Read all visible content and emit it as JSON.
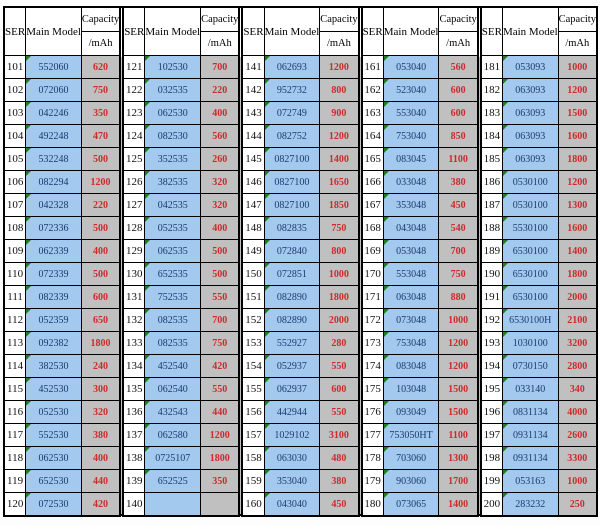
{
  "title": "battery model capacity list",
  "colors": {
    "cell_blue": "#a4c9ee",
    "cell_gray": "#c0c0c0",
    "value_red": "#cc2b2b",
    "model_text": "#1c3a6e",
    "flag_green": "#1e7d1e",
    "border_black": "#000000"
  },
  "header": {
    "ser": "SER",
    "model": "Main Model",
    "capacity_line1": "Capacity",
    "capacity_line2": "/mAh"
  },
  "groups": [
    {
      "rows": [
        [
          "101",
          "552060",
          "620"
        ],
        [
          "102",
          "072060",
          "750"
        ],
        [
          "103",
          "042246",
          "350"
        ],
        [
          "104",
          "492248",
          "470"
        ],
        [
          "105",
          "532248",
          "500"
        ],
        [
          "106",
          "082294",
          "1200"
        ],
        [
          "107",
          "042328",
          "220"
        ],
        [
          "108",
          "072336",
          "500"
        ],
        [
          "109",
          "062339",
          "400"
        ],
        [
          "110",
          "072339",
          "500"
        ],
        [
          "111",
          "082339",
          "600"
        ],
        [
          "112",
          "052359",
          "650"
        ],
        [
          "113",
          "092382",
          "1800"
        ],
        [
          "114",
          "382530",
          "240"
        ],
        [
          "115",
          "452530",
          "300"
        ],
        [
          "116",
          "052530",
          "320"
        ],
        [
          "117",
          "552530",
          "380"
        ],
        [
          "118",
          "062530",
          "400"
        ],
        [
          "119",
          "652530",
          "440"
        ],
        [
          "120",
          "072530",
          "420"
        ]
      ]
    },
    {
      "rows": [
        [
          "121",
          "102530",
          "700"
        ],
        [
          "122",
          "032535",
          "220"
        ],
        [
          "123",
          "062530",
          "400"
        ],
        [
          "124",
          "082530",
          "560"
        ],
        [
          "125",
          "352535",
          "260"
        ],
        [
          "126",
          "382535",
          "320"
        ],
        [
          "127",
          "042535",
          "320"
        ],
        [
          "128",
          "052535",
          "400"
        ],
        [
          "129",
          "062535",
          "500"
        ],
        [
          "130",
          "652535",
          "500"
        ],
        [
          "131",
          "752535",
          "550"
        ],
        [
          "132",
          "082535",
          "700"
        ],
        [
          "133",
          "082535",
          "750"
        ],
        [
          "134",
          "452540",
          "420"
        ],
        [
          "135",
          "062540",
          "550"
        ],
        [
          "136",
          "432543",
          "440"
        ],
        [
          "137",
          "062580",
          "1200"
        ],
        [
          "138",
          "0725107",
          "1800"
        ],
        [
          "139",
          "652525",
          "350"
        ],
        [
          "140",
          "",
          ""
        ]
      ]
    },
    {
      "rows": [
        [
          "141",
          "062693",
          "1200"
        ],
        [
          "142",
          "952732",
          "800"
        ],
        [
          "143",
          "072749",
          "900"
        ],
        [
          "144",
          "082752",
          "1200"
        ],
        [
          "145",
          "0827100",
          "1400"
        ],
        [
          "146",
          "0827100",
          "1650"
        ],
        [
          "147",
          "0827100",
          "1850"
        ],
        [
          "148",
          "082835",
          "750"
        ],
        [
          "149",
          "072840",
          "800"
        ],
        [
          "150",
          "072851",
          "1000"
        ],
        [
          "151",
          "082890",
          "1800"
        ],
        [
          "152",
          "082890",
          "2000"
        ],
        [
          "153",
          "552927",
          "280"
        ],
        [
          "154",
          "052937",
          "550"
        ],
        [
          "155",
          "062937",
          "600"
        ],
        [
          "156",
          "442944",
          "550"
        ],
        [
          "157",
          "1029102",
          "3100"
        ],
        [
          "158",
          "063030",
          "480"
        ],
        [
          "159",
          "353040",
          "380"
        ],
        [
          "160",
          "043040",
          "450"
        ]
      ]
    },
    {
      "rows": [
        [
          "161",
          "053040",
          "560"
        ],
        [
          "162",
          "523040",
          "600"
        ],
        [
          "163",
          "553040",
          "600"
        ],
        [
          "164",
          "753040",
          "850"
        ],
        [
          "165",
          "083045",
          "1100"
        ],
        [
          "166",
          "033048",
          "380"
        ],
        [
          "167",
          "353048",
          "450"
        ],
        [
          "168",
          "043048",
          "540"
        ],
        [
          "169",
          "053048",
          "700"
        ],
        [
          "170",
          "553048",
          "750"
        ],
        [
          "171",
          "063048",
          "880"
        ],
        [
          "172",
          "073048",
          "1000"
        ],
        [
          "173",
          "753048",
          "1200"
        ],
        [
          "174",
          "083048",
          "1200"
        ],
        [
          "175",
          "103048",
          "1500"
        ],
        [
          "176",
          "093049",
          "1500"
        ],
        [
          "177",
          "753050HT",
          "1100"
        ],
        [
          "178",
          "703060",
          "1300"
        ],
        [
          "179",
          "903060",
          "1700"
        ],
        [
          "180",
          "073065",
          "1400"
        ]
      ]
    },
    {
      "rows": [
        [
          "181",
          "053093",
          "1000"
        ],
        [
          "182",
          "063093",
          "1200"
        ],
        [
          "183",
          "063093",
          "1500"
        ],
        [
          "184",
          "063093",
          "1600"
        ],
        [
          "185",
          "063093",
          "1800"
        ],
        [
          "186",
          "0530100",
          "1200"
        ],
        [
          "187",
          "0530100",
          "1300"
        ],
        [
          "188",
          "5530100",
          "1600"
        ],
        [
          "189",
          "6530100",
          "1400"
        ],
        [
          "190",
          "6530100",
          "1800"
        ],
        [
          "191",
          "6530100",
          "2000"
        ],
        [
          "192",
          "6530100H",
          "2100"
        ],
        [
          "193",
          "1030100",
          "3200"
        ],
        [
          "194",
          "0730150",
          "2800"
        ],
        [
          "195",
          "033140",
          "340"
        ],
        [
          "196",
          "0831134",
          "4000"
        ],
        [
          "197",
          "0931134",
          "2600"
        ],
        [
          "198",
          "0931134",
          "3300"
        ],
        [
          "199",
          "053163",
          "1000"
        ],
        [
          "200",
          "283232",
          "250"
        ]
      ]
    }
  ]
}
